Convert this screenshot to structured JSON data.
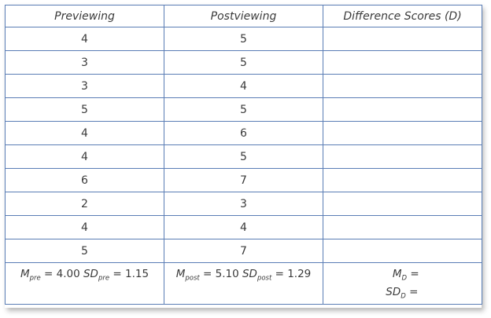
{
  "table": {
    "headers": [
      "Previewing",
      "Postviewing",
      "Difference Scores (D)"
    ],
    "rows": [
      [
        "4",
        "5",
        ""
      ],
      [
        "3",
        "5",
        ""
      ],
      [
        "3",
        "4",
        ""
      ],
      [
        "5",
        "5",
        ""
      ],
      [
        "4",
        "6",
        ""
      ],
      [
        "4",
        "5",
        ""
      ],
      [
        "6",
        "7",
        ""
      ],
      [
        "2",
        "3",
        ""
      ],
      [
        "4",
        "4",
        ""
      ],
      [
        "5",
        "7",
        ""
      ]
    ],
    "summary": {
      "pre": {
        "m_symbol": "M",
        "m_sub": "pre",
        "m_value": "= 4.00",
        "sd_symbol": "SD",
        "sd_sub": "pre",
        "sd_value": "= 1.15"
      },
      "post": {
        "m_symbol": "M",
        "m_sub": "post",
        "m_value": "= 5.10",
        "sd_symbol": "SD",
        "sd_sub": "post",
        "sd_value": "= 1.29"
      },
      "diff": {
        "m_symbol": "M",
        "m_sub": "D",
        "m_value": "=",
        "sd_symbol": "SD",
        "sd_sub": "D",
        "sd_value": "="
      }
    }
  },
  "colors": {
    "border": "#5a7db5",
    "text": "#3a3a3a"
  }
}
